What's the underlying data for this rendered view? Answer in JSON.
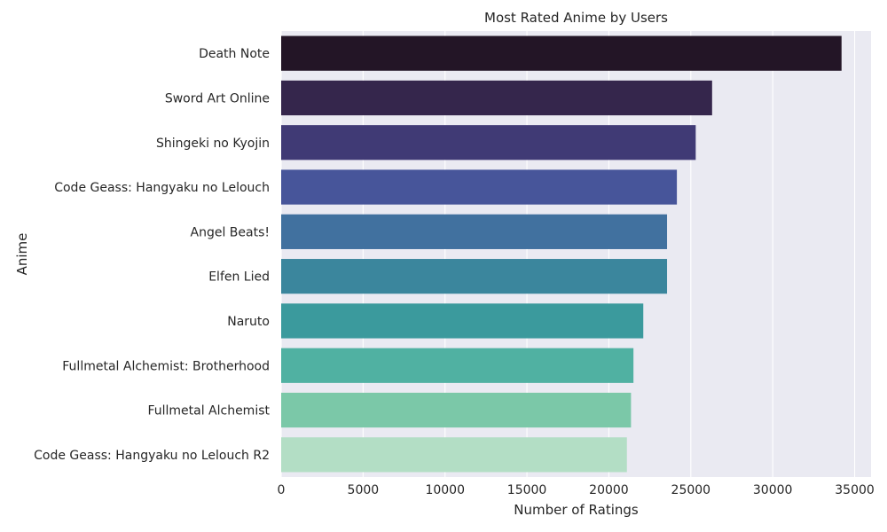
{
  "chart_data": {
    "type": "bar",
    "orientation": "horizontal",
    "title": "Most Rated Anime by Users",
    "xlabel": "Number of Ratings",
    "ylabel": "Anime",
    "xlim": [
      0,
      36000
    ],
    "xticks": [
      0,
      5000,
      10000,
      15000,
      20000,
      25000,
      30000,
      35000
    ],
    "grid": true,
    "categories": [
      "Death Note",
      "Sword Art Online",
      "Shingeki no Kyojin",
      "Code Geass: Hangyaku no Lelouch",
      "Angel Beats!",
      "Elfen Lied",
      "Naruto",
      "Fullmetal Alchemist: Brotherhood",
      "Fullmetal Alchemist",
      "Code Geass: Hangyaku no Lelouch R2"
    ],
    "values": [
      34200,
      26300,
      25300,
      24150,
      23550,
      23550,
      22100,
      21500,
      21350,
      21100
    ],
    "colors": [
      "#231526",
      "#35264c",
      "#403a75",
      "#47559a",
      "#41719f",
      "#3b869d",
      "#3b9a9d",
      "#50b1a2",
      "#7bc8a8",
      "#b3dec5"
    ],
    "background": "#eaeaf2"
  }
}
